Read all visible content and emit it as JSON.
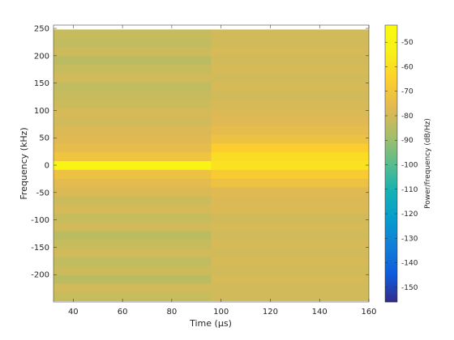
{
  "chart_data": {
    "type": "heatmap",
    "title": "",
    "xlabel": "Time (μs)",
    "ylabel": "Frequency (kHz)",
    "colorbar_label": "Power/frequency (dB/Hz)",
    "colormap": "parula",
    "xlim": [
      32,
      160
    ],
    "ylim": [
      -250,
      256
    ],
    "clim": [
      -156,
      -43
    ],
    "x_ticks": [
      40,
      60,
      80,
      100,
      120,
      140,
      160
    ],
    "y_ticks": [
      -200,
      -150,
      -100,
      -50,
      0,
      50,
      100,
      150,
      200,
      250
    ],
    "colorbar_ticks": [
      -150,
      -140,
      -130,
      -120,
      -110,
      -100,
      -90,
      -80,
      -70,
      -60,
      -50
    ],
    "time_segments": [
      {
        "x_range": [
          32,
          96
        ]
      },
      {
        "x_range": [
          96,
          160
        ]
      }
    ],
    "frequency_bins_khz": [
      -240,
      -224,
      -208,
      -192,
      -176,
      -160,
      -144,
      -128,
      -112,
      -96,
      -80,
      -64,
      -48,
      -32,
      -16,
      0,
      16,
      32,
      48,
      64,
      80,
      96,
      112,
      128,
      144,
      160,
      176,
      192,
      208,
      224,
      240
    ],
    "power_db_per_hz": [
      [
        -82,
        -80,
        -84,
        -81,
        -83,
        -80,
        -82,
        -84,
        -80,
        -82,
        -79,
        -81,
        -78,
        -76,
        -72,
        -50,
        -71,
        -75,
        -77,
        -78,
        -80,
        -79,
        -81,
        -82,
        -83,
        -80,
        -82,
        -84,
        -81,
        -83,
        -82
      ],
      [
        -80,
        -80,
        -79,
        -80,
        -79,
        -80,
        -79,
        -80,
        -79,
        -80,
        -78,
        -78,
        -77,
        -72,
        -67,
        -59,
        -61,
        -66,
        -72,
        -75,
        -77,
        -78,
        -79,
        -80,
        -79,
        -80,
        -79,
        -80,
        -79,
        -80,
        -80
      ]
    ]
  }
}
